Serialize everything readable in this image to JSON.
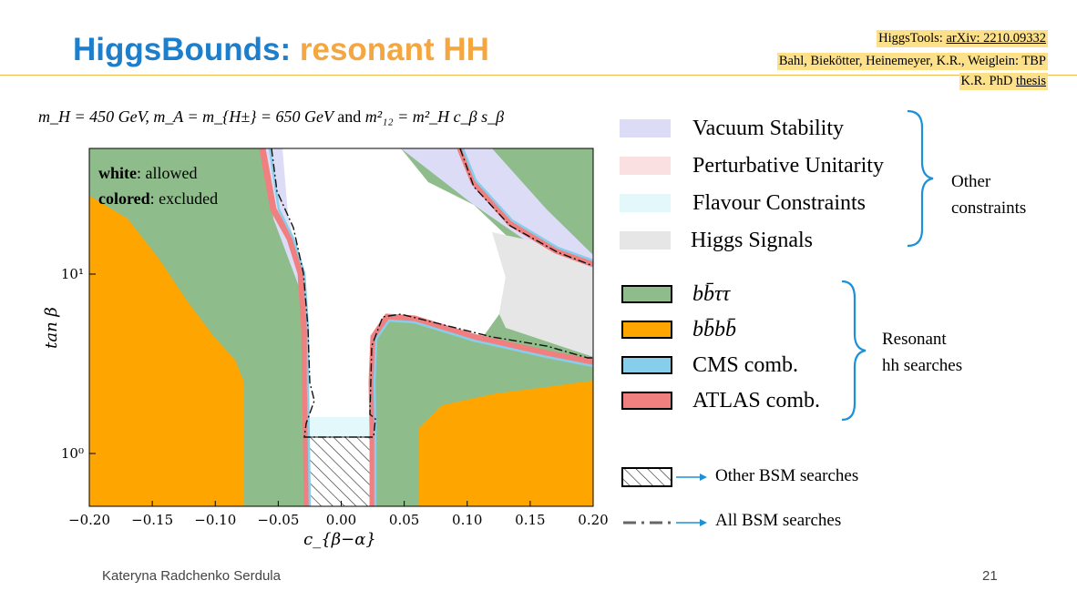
{
  "title": {
    "part1": "HiggsBounds:",
    "part2": "resonant HH"
  },
  "references": {
    "line1_prefix": "HiggsTools: ",
    "line1_link": "arXiv: 2210.09332",
    "line2": "Bahl, Biekötter, Heinemeyer, K.R., Weiglein: TBP",
    "line3_prefix": "K.R. PhD ",
    "line3_link": "thesis"
  },
  "subtitle": {
    "mH": "m_H = 450 GeV",
    "mA": "m_A = m_{H±} = 650 GeV",
    "and": "and",
    "m12": "m²₁₂ = m²_H c_β s_β"
  },
  "plot_annotation": {
    "white_bold": "white",
    "white_rest": ": allowed",
    "colored_bold": "colored",
    "colored_rest": ": excluded"
  },
  "axes": {
    "xlabel": "c_{β−α}",
    "ylabel": "tan β",
    "xticks": [
      "−0.20",
      "−0.15",
      "−0.10",
      "−0.05",
      "0.00",
      "0.05",
      "0.10",
      "0.15",
      "0.20"
    ],
    "yticks": [
      "10¹",
      "10⁰"
    ],
    "xlim": [
      -0.2,
      0.2
    ],
    "ylim_log10": [
      -0.3,
      1.72
    ],
    "y_scale": "log"
  },
  "legend_constraints": [
    {
      "label": "Vacuum Stability",
      "color": "#dcdcf7"
    },
    {
      "label": "Perturbative Unitarity",
      "color": "#fbe0e2"
    },
    {
      "label": "Flavour Constraints",
      "color": "#e3f8fb"
    },
    {
      "label": "Higgs Signals",
      "color": "#e6e6e6"
    }
  ],
  "brace_other": {
    "line1": "Other",
    "line2": "constraints"
  },
  "legend_searches": [
    {
      "label": "bb̄ττ",
      "color": "#8fbc8b"
    },
    {
      "label": "bb̄bb̄",
      "color": "#ffa500"
    },
    {
      "label": "CMS comb.",
      "color": "#87ceeb"
    },
    {
      "label": "ATLAS comb.",
      "color": "#f08080"
    }
  ],
  "brace_resonant": {
    "line1": "Resonant",
    "line2": "hh searches"
  },
  "legend_bsm": [
    {
      "label": "Other BSM searches",
      "icon": "hatch-icon"
    },
    {
      "label": "All BSM searches",
      "icon": "dashdot-line-icon"
    }
  ],
  "accent_colors": {
    "title_blue": "#1d7ecb",
    "title_orange": "#f4a640",
    "arrow_blue": "#1d90d8",
    "highlight": "#fce08a"
  },
  "footer": {
    "author": "Kateryna Radchenko Serdula",
    "page": "21"
  }
}
